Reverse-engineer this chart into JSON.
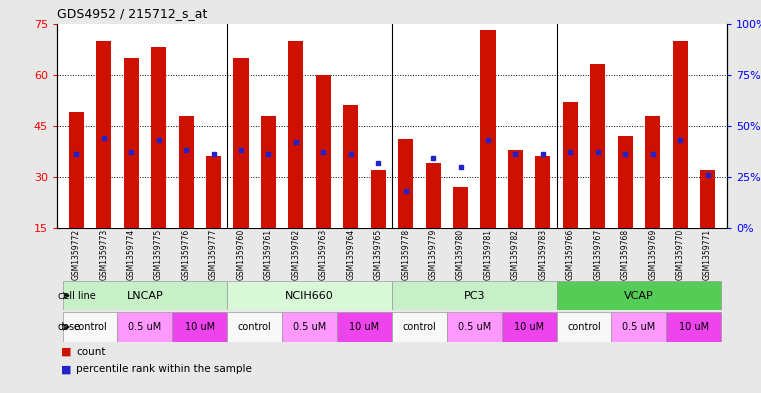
{
  "title": "GDS4952 / 215712_s_at",
  "samples": [
    "GSM1359772",
    "GSM1359773",
    "GSM1359774",
    "GSM1359775",
    "GSM1359776",
    "GSM1359777",
    "GSM1359760",
    "GSM1359761",
    "GSM1359762",
    "GSM1359763",
    "GSM1359764",
    "GSM1359765",
    "GSM1359778",
    "GSM1359779",
    "GSM1359780",
    "GSM1359781",
    "GSM1359782",
    "GSM1359783",
    "GSM1359766",
    "GSM1359767",
    "GSM1359768",
    "GSM1359769",
    "GSM1359770",
    "GSM1359771"
  ],
  "counts": [
    49,
    70,
    65,
    68,
    48,
    36,
    65,
    48,
    70,
    60,
    51,
    32,
    41,
    34,
    27,
    73,
    38,
    36,
    52,
    63,
    42,
    48,
    70,
    32
  ],
  "percentile_ranks": [
    36,
    44,
    37,
    43,
    38,
    36,
    38,
    36,
    42,
    37,
    36,
    32,
    18,
    34,
    30,
    43,
    36,
    36,
    37,
    37,
    36,
    36,
    43,
    26
  ],
  "cell_lines": [
    {
      "name": "LNCAP",
      "start": 0,
      "end": 6
    },
    {
      "name": "NCIH660",
      "start": 6,
      "end": 12
    },
    {
      "name": "PC3",
      "start": 12,
      "end": 18
    },
    {
      "name": "VCAP",
      "start": 18,
      "end": 24
    }
  ],
  "cell_line_colors": {
    "LNCAP": "#c8f0c8",
    "NCIH660": "#d8f8d8",
    "PC3": "#c8f0c8",
    "VCAP": "#55cc55"
  },
  "dose_groups": [
    {
      "label": "control",
      "color": "#f8f8f8"
    },
    {
      "label": "0.5 uM",
      "color": "#ff99ff"
    },
    {
      "label": "10 uM",
      "color": "#ee44ee"
    }
  ],
  "bar_color": "#cc1100",
  "dot_color": "#2222cc",
  "ylim_left": [
    15,
    75
  ],
  "ylim_right": [
    0,
    100
  ],
  "yticks_left": [
    15,
    30,
    45,
    60,
    75
  ],
  "yticks_right": [
    0,
    25,
    50,
    75,
    100
  ],
  "yticklabels_right": [
    "0%",
    "25%",
    "50%",
    "75%",
    "100%"
  ],
  "grid_lines": [
    30,
    45,
    60
  ],
  "group_separators": [
    6,
    12,
    18
  ],
  "background_color": "#e8e8e8",
  "plot_bg": "#ffffff"
}
